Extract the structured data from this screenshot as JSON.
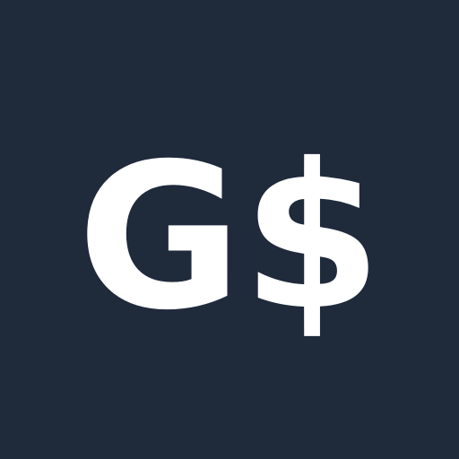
{
  "icon": {
    "text": "G$",
    "background_color": "#1f2a3b",
    "text_color": "#ffffff"
  }
}
